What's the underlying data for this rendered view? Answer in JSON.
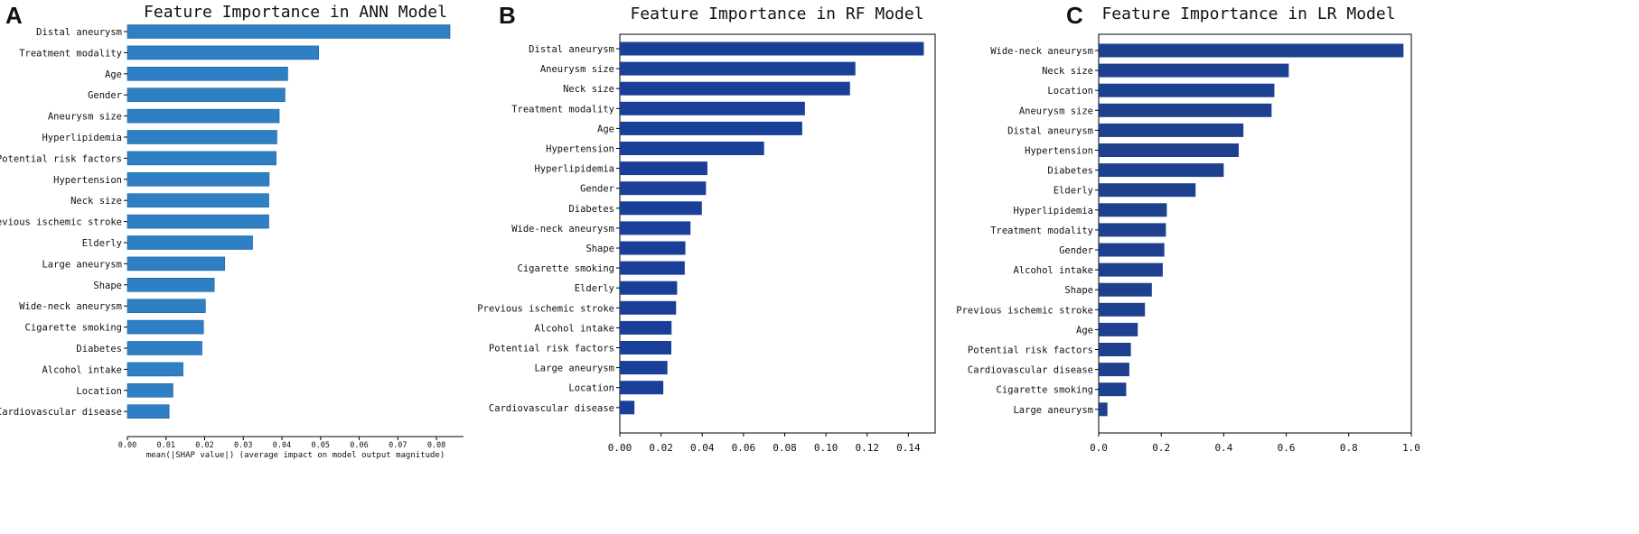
{
  "colors": {
    "ann_bar": "#2f7fc4",
    "rf_bar": "#1a3f99",
    "lr_bar": "#1e418f",
    "axis": "#000000"
  },
  "chart_data": [
    {
      "panel": "A",
      "type": "bar",
      "orientation": "horizontal",
      "title": "Feature Importance in ANN Model",
      "xlabel": "mean(|SHAP value|) (average impact on model output magnitude)",
      "ylabel": "",
      "xlim": [
        0,
        0.087
      ],
      "xticks": [
        0.0,
        0.01,
        0.02,
        0.03,
        0.04,
        0.05,
        0.06,
        0.07,
        0.08
      ],
      "xtick_labels": [
        "0.00",
        "0.01",
        "0.02",
        "0.03",
        "0.04",
        "0.05",
        "0.06",
        "0.07",
        "0.08"
      ],
      "categories": [
        "Distal aneurysm",
        "Treatment modality",
        "Age",
        "Gender",
        "Aneurysm size",
        "Hyperlipidemia",
        "Potential risk factors",
        "Hypertension",
        "Neck size",
        "Previous ischemic stroke",
        "Elderly",
        "Large aneurysm",
        "Shape",
        "Wide-neck aneurysm",
        "Cigarette smoking",
        "Diabetes",
        "Alcohol intake",
        "Location",
        "Cardiovascular disease"
      ],
      "values": [
        0.0835,
        0.0495,
        0.0415,
        0.0408,
        0.0393,
        0.0387,
        0.0385,
        0.0367,
        0.0366,
        0.0366,
        0.0324,
        0.0252,
        0.0225,
        0.0202,
        0.0197,
        0.0193,
        0.0144,
        0.0118,
        0.0108
      ],
      "grid": false,
      "frame": "bottom"
    },
    {
      "panel": "B",
      "type": "bar",
      "orientation": "horizontal",
      "title": "Feature Importance in RF Model",
      "xlabel": "",
      "ylabel": "",
      "xlim": [
        0,
        0.153
      ],
      "xticks": [
        0.0,
        0.02,
        0.04,
        0.06,
        0.08,
        0.1,
        0.12,
        0.14
      ],
      "xtick_labels": [
        "0.00",
        "0.02",
        "0.04",
        "0.06",
        "0.08",
        "0.10",
        "0.12",
        "0.14"
      ],
      "categories": [
        "Distal aneurysm",
        "Aneurysm size",
        "Neck size",
        "Treatment modality",
        "Age",
        "Hypertension",
        "Hyperlipidemia",
        "Gender",
        "Diabetes",
        "Wide-neck aneurysm",
        "Shape",
        "Cigarette smoking",
        "Elderly",
        "Previous ischemic stroke",
        "Alcohol intake",
        "Potential risk factors",
        "Large aneurysm",
        "Location",
        "Cardiovascular disease"
      ],
      "values": [
        0.1475,
        0.1143,
        0.1117,
        0.0898,
        0.0885,
        0.07,
        0.0425,
        0.0418,
        0.0398,
        0.0343,
        0.0318,
        0.0315,
        0.0278,
        0.0273,
        0.0251,
        0.025,
        0.0231,
        0.0211,
        0.0071
      ],
      "grid": false,
      "frame": "box"
    },
    {
      "panel": "C",
      "type": "bar",
      "orientation": "horizontal",
      "title": "Feature Importance in LR Model",
      "xlabel": "",
      "ylabel": "",
      "xlim": [
        0,
        1.0
      ],
      "xticks": [
        0.0,
        0.2,
        0.4,
        0.6,
        0.8,
        1.0
      ],
      "xtick_labels": [
        "0.0",
        "0.2",
        "0.4",
        "0.6",
        "0.8",
        "1.0"
      ],
      "categories": [
        "Wide-neck aneurysm",
        "Neck size",
        "Location",
        "Aneurysm size",
        "Distal aneurysm",
        "Hypertension",
        "Diabetes",
        "Elderly",
        "Hyperlipidemia",
        "Treatment modality",
        "Gender",
        "Alcohol intake",
        "Shape",
        "Previous ischemic stroke",
        "Age",
        "Potential risk factors",
        "Cardiovascular disease",
        "Cigarette smoking",
        "Large aneurysm"
      ],
      "values": [
        0.975,
        0.608,
        0.562,
        0.553,
        0.463,
        0.448,
        0.4,
        0.31,
        0.218,
        0.215,
        0.21,
        0.205,
        0.17,
        0.148,
        0.125,
        0.103,
        0.098,
        0.088,
        0.028
      ],
      "grid": false,
      "frame": "box"
    }
  ]
}
